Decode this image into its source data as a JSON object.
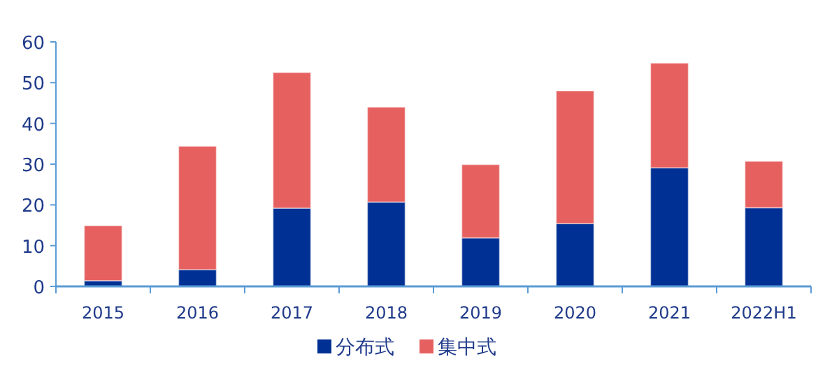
{
  "chart_data": {
    "type": "bar",
    "stacked": true,
    "categories": [
      "2015",
      "2016",
      "2017",
      "2018",
      "2019",
      "2020",
      "2021",
      "2022H1"
    ],
    "series": [
      {
        "name": "分布式",
        "color": "#003094",
        "values": [
          1.4,
          4.1,
          19.2,
          20.7,
          11.9,
          15.4,
          29.1,
          19.3
        ]
      },
      {
        "name": "集中式",
        "color": "#e66060",
        "values": [
          13.5,
          30.3,
          33.3,
          23.3,
          18.0,
          32.6,
          25.7,
          11.4
        ]
      }
    ],
    "ylim": [
      0,
      60
    ],
    "yticks": [
      0,
      10,
      20,
      30,
      40,
      50,
      60
    ],
    "grid": false,
    "legend": "bottom"
  }
}
